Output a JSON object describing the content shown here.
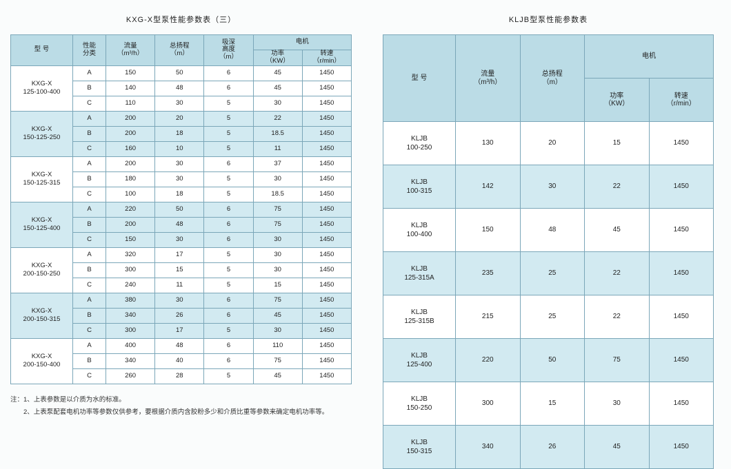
{
  "left": {
    "title": "KXG-X型泵性能参数表（三）",
    "headers": {
      "model": "型 号",
      "category": "性能\n分类",
      "flow": "流量\n（m³/h）",
      "head": "总扬程\n（m）",
      "suction": "吸深\n高度\n（m）",
      "motor": "电机",
      "power": "功率\n（KW）",
      "speed": "转速\n（r/min）"
    },
    "groups": [
      {
        "model": "KXG-X\n125-100-400",
        "bg": "white",
        "rows": [
          {
            "cat": "A",
            "flow": "150",
            "head": "50",
            "suc": "6",
            "pow": "45",
            "spd": "1450"
          },
          {
            "cat": "B",
            "flow": "140",
            "head": "48",
            "suc": "6",
            "pow": "45",
            "spd": "1450"
          },
          {
            "cat": "C",
            "flow": "110",
            "head": "30",
            "suc": "5",
            "pow": "30",
            "spd": "1450"
          }
        ]
      },
      {
        "model": "KXG-X\n150-125-250",
        "bg": "blue",
        "rows": [
          {
            "cat": "A",
            "flow": "200",
            "head": "20",
            "suc": "5",
            "pow": "22",
            "spd": "1450"
          },
          {
            "cat": "B",
            "flow": "200",
            "head": "18",
            "suc": "5",
            "pow": "18.5",
            "spd": "1450"
          },
          {
            "cat": "C",
            "flow": "160",
            "head": "10",
            "suc": "5",
            "pow": "11",
            "spd": "1450"
          }
        ]
      },
      {
        "model": "KXG-X\n150-125-315",
        "bg": "white",
        "rows": [
          {
            "cat": "A",
            "flow": "200",
            "head": "30",
            "suc": "6",
            "pow": "37",
            "spd": "1450"
          },
          {
            "cat": "B",
            "flow": "180",
            "head": "30",
            "suc": "5",
            "pow": "30",
            "spd": "1450"
          },
          {
            "cat": "C",
            "flow": "100",
            "head": "18",
            "suc": "5",
            "pow": "18.5",
            "spd": "1450"
          }
        ]
      },
      {
        "model": "KXG-X\n150-125-400",
        "bg": "blue",
        "rows": [
          {
            "cat": "A",
            "flow": "220",
            "head": "50",
            "suc": "6",
            "pow": "75",
            "spd": "1450"
          },
          {
            "cat": "B",
            "flow": "200",
            "head": "48",
            "suc": "6",
            "pow": "75",
            "spd": "1450"
          },
          {
            "cat": "C",
            "flow": "150",
            "head": "30",
            "suc": "6",
            "pow": "30",
            "spd": "1450"
          }
        ]
      },
      {
        "model": "KXG-X\n200-150-250",
        "bg": "white",
        "rows": [
          {
            "cat": "A",
            "flow": "320",
            "head": "17",
            "suc": "5",
            "pow": "30",
            "spd": "1450"
          },
          {
            "cat": "B",
            "flow": "300",
            "head": "15",
            "suc": "5",
            "pow": "30",
            "spd": "1450"
          },
          {
            "cat": "C",
            "flow": "240",
            "head": "11",
            "suc": "5",
            "pow": "15",
            "spd": "1450"
          }
        ]
      },
      {
        "model": "KXG-X\n200-150-315",
        "bg": "blue",
        "rows": [
          {
            "cat": "A",
            "flow": "380",
            "head": "30",
            "suc": "6",
            "pow": "75",
            "spd": "1450"
          },
          {
            "cat": "B",
            "flow": "340",
            "head": "26",
            "suc": "6",
            "pow": "45",
            "spd": "1450"
          },
          {
            "cat": "C",
            "flow": "300",
            "head": "17",
            "suc": "5",
            "pow": "30",
            "spd": "1450"
          }
        ]
      },
      {
        "model": "KXG-X\n200-150-400",
        "bg": "white",
        "rows": [
          {
            "cat": "A",
            "flow": "400",
            "head": "48",
            "suc": "6",
            "pow": "110",
            "spd": "1450"
          },
          {
            "cat": "B",
            "flow": "340",
            "head": "40",
            "suc": "6",
            "pow": "75",
            "spd": "1450"
          },
          {
            "cat": "C",
            "flow": "260",
            "head": "28",
            "suc": "5",
            "pow": "45",
            "spd": "1450"
          }
        ]
      }
    ],
    "notes": [
      "注：1、上表参数是以介质为水的标准。",
      "　　2、上表泵配套电机功率等参数仅供参考，要根据介质内含胶粉多少和介质比重等参数来确定电机功率等。"
    ]
  },
  "right": {
    "title": "KLJB型泵性能参数表",
    "headers": {
      "model": "型 号",
      "flow": "流量\n（m³/h）",
      "head": "总扬程\n（m）",
      "motor": "电机",
      "power": "功率\n（KW）",
      "speed": "转速\n（r/min）"
    },
    "rows": [
      {
        "model": "KLJB\n100-250",
        "flow": "130",
        "head": "20",
        "pow": "15",
        "spd": "1450",
        "bg": "white"
      },
      {
        "model": "KLJB\n100-315",
        "flow": "142",
        "head": "30",
        "pow": "22",
        "spd": "1450",
        "bg": "blue"
      },
      {
        "model": "KLJB\n100-400",
        "flow": "150",
        "head": "48",
        "pow": "45",
        "spd": "1450",
        "bg": "white"
      },
      {
        "model": "KLJB\n125-315A",
        "flow": "235",
        "head": "25",
        "pow": "22",
        "spd": "1450",
        "bg": "blue"
      },
      {
        "model": "KLJB\n125-315B",
        "flow": "215",
        "head": "25",
        "pow": "22",
        "spd": "1450",
        "bg": "white"
      },
      {
        "model": "KLJB\n125-400",
        "flow": "220",
        "head": "50",
        "pow": "75",
        "spd": "1450",
        "bg": "blue"
      },
      {
        "model": "KLJB\n150-250",
        "flow": "300",
        "head": "15",
        "pow": "30",
        "spd": "1450",
        "bg": "white"
      },
      {
        "model": "KLJB\n150-315",
        "flow": "340",
        "head": "26",
        "pow": "45",
        "spd": "1450",
        "bg": "blue"
      }
    ]
  }
}
